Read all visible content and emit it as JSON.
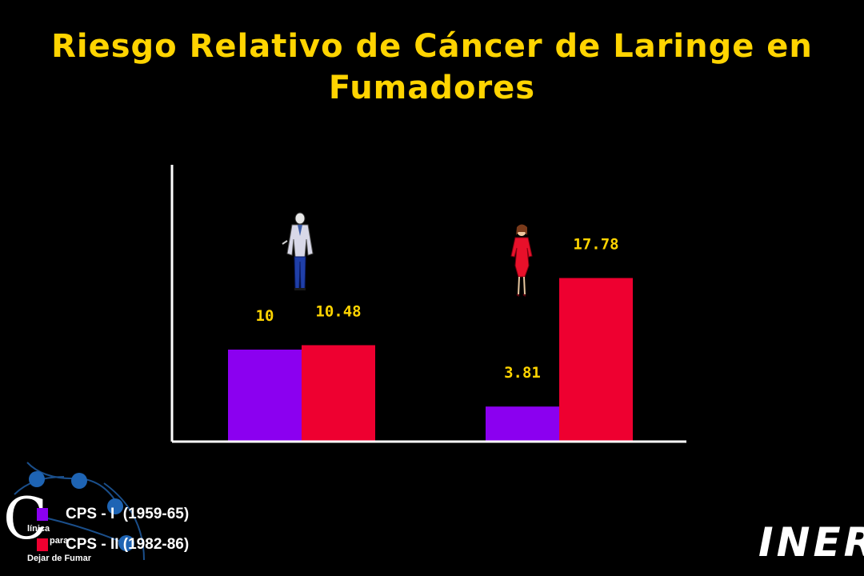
{
  "title": {
    "line1": "Riesgo Relativo de Cáncer de Laringe en",
    "line2": "Fumadores"
  },
  "chart_data": {
    "type": "bar",
    "title": "Riesgo Relativo de Cáncer de Laringe en Fumadores",
    "categories": [
      "",
      ""
    ],
    "category_icons": [
      "man-figure-icon",
      "woman-figure-icon"
    ],
    "series": [
      {
        "name": "CPS - I  (1959-65)",
        "values": [
          10,
          3.81
        ],
        "color": "#8B00F0"
      },
      {
        "name": "CPS - II (1982-86)",
        "values": [
          10.48,
          17.78
        ],
        "color": "#EE0030"
      }
    ],
    "data_labels": [
      [
        "10",
        "3.81"
      ],
      [
        "10.48",
        "17.78"
      ]
    ],
    "ylim": [
      0,
      30
    ],
    "grid": false,
    "legend_position": "bottom-left",
    "label_color": "#FFD400",
    "axis_color": "#FFFFFF"
  },
  "legend": {
    "items": [
      {
        "label": "CPS - I  (1959-65)",
        "color": "#8B00F0"
      },
      {
        "label": "CPS - II (1982-86)",
        "color": "#EE0030"
      }
    ]
  },
  "logo_left": {
    "letter": "C",
    "line1": "línica",
    "line2": "para",
    "line3": "Dejar de Fumar"
  },
  "logo_right": {
    "text": "INER"
  },
  "colors": {
    "background": "#000000",
    "title": "#FFD400",
    "axis": "#FFFFFF"
  }
}
